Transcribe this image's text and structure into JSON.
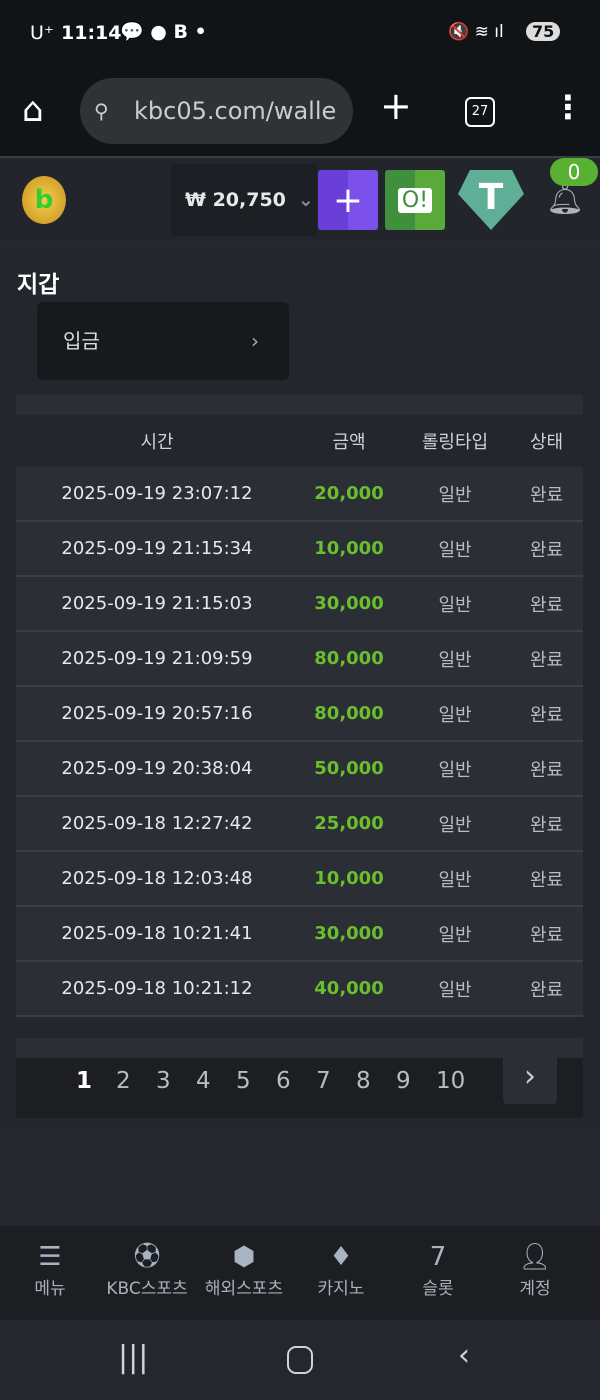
{
  "status_bar": {
    "carrier": "U⁺",
    "time": "11:14",
    "battery": "75"
  },
  "browser": {
    "url": "kbc05.com/walle",
    "tab_count": "27"
  },
  "header": {
    "balance": "₩ 20,750",
    "notification_count": "0",
    "colors": {
      "add": "#7b4ae6",
      "wallet": "#4ea43a",
      "tether": "#5fae96"
    }
  },
  "page": {
    "title": "지갑",
    "deposit_label": "입금"
  },
  "table": {
    "headers": [
      "시간",
      "금액",
      "롤링타입",
      "상태"
    ],
    "rows": [
      [
        "2025-09-19 23:07:12",
        "20,000",
        "일반",
        "완료"
      ],
      [
        "2025-09-19 21:15:34",
        "10,000",
        "일반",
        "완료"
      ],
      [
        "2025-09-19 21:15:03",
        "30,000",
        "일반",
        "완료"
      ],
      [
        "2025-09-19 21:09:59",
        "80,000",
        "일반",
        "완료"
      ],
      [
        "2025-09-19 20:57:16",
        "80,000",
        "일반",
        "완료"
      ],
      [
        "2025-09-19 20:38:04",
        "50,000",
        "일반",
        "완료"
      ],
      [
        "2025-09-18 12:27:42",
        "25,000",
        "일반",
        "완료"
      ],
      [
        "2025-09-18 12:03:48",
        "10,000",
        "일반",
        "완료"
      ],
      [
        "2025-09-18 10:21:41",
        "30,000",
        "일반",
        "완료"
      ],
      [
        "2025-09-18 10:21:12",
        "40,000",
        "일반",
        "완료"
      ]
    ]
  },
  "pagination": {
    "pages": [
      "1",
      "2",
      "3",
      "4",
      "5",
      "6",
      "7",
      "8",
      "9",
      "10"
    ],
    "current": "1"
  },
  "bottom_nav": [
    {
      "label": "메뉴",
      "icon": "menu-search-icon"
    },
    {
      "label": "KBC스포츠",
      "icon": "soccer-ball-icon"
    },
    {
      "label": "해외스포츠",
      "icon": "dice-icon"
    },
    {
      "label": "카지노",
      "icon": "cards-icon"
    },
    {
      "label": "슬롯",
      "icon": "slot-icon"
    },
    {
      "label": "계정",
      "icon": "account-icon"
    }
  ]
}
